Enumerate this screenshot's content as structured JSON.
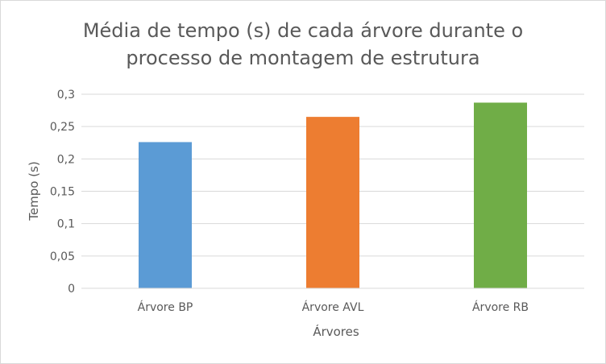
{
  "chart_data": {
    "type": "bar",
    "title": [
      "Média de tempo (s) de cada árvore durante o",
      "processo de montagem de estrutura"
    ],
    "xlabel": "Árvores",
    "ylabel": "Tempo (s)",
    "categories": [
      "Árvore BP",
      "Árvore AVL",
      "Árvore RB"
    ],
    "values": [
      0.226,
      0.265,
      0.287
    ],
    "colors": [
      "#5b9bd5",
      "#ed7d31",
      "#70ad47"
    ],
    "ylim": [
      0,
      0.3
    ],
    "yticks": [
      0,
      0.05,
      0.1,
      0.15,
      0.2,
      0.25,
      0.3
    ],
    "ytick_labels": [
      "0",
      "0,05",
      "0,1",
      "0,15",
      "0,2",
      "0,25",
      "0,3"
    ],
    "grid": true,
    "legend": "none"
  }
}
